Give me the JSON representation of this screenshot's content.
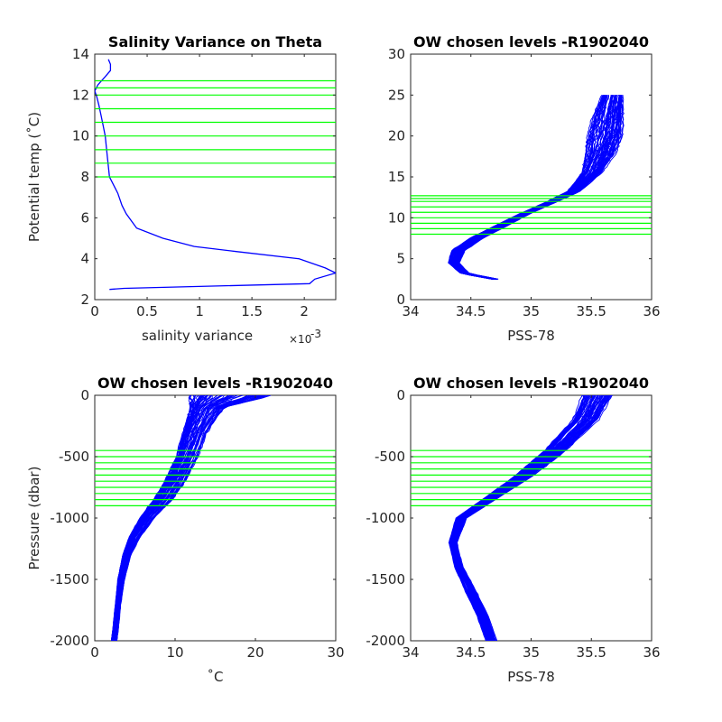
{
  "colors": {
    "profile": "#0000ff",
    "levels": "#00ff00",
    "axis": "#262626"
  },
  "chart_data": [
    {
      "type": "line",
      "title": "Salinity Variance on Theta",
      "xlabel": "salinity variance",
      "x_exponent_base": "×10",
      "x_exponent_power": "-3",
      "ylabel": "Potential temp (˚C)",
      "xlim": [
        0,
        2.3
      ],
      "ylim": [
        2,
        14
      ],
      "xticks": [
        0,
        0.5,
        1,
        1.5,
        2
      ],
      "xtick_labels": [
        "0",
        "0.5",
        "1",
        "1.5",
        "2"
      ],
      "yticks": [
        2,
        4,
        6,
        8,
        10,
        12,
        14
      ],
      "ytick_labels": [
        "2",
        "4",
        "6",
        "8",
        "10",
        "12",
        "14"
      ],
      "series": [
        {
          "x": [
            0.14,
            0.28,
            2.05,
            2.1,
            2.3,
            2.2,
            1.95,
            1.35,
            0.95,
            0.65,
            0.4,
            0.3,
            0.26,
            0.22,
            0.14,
            0.12,
            0.1,
            0.08,
            0.06,
            0.04,
            0.02,
            0.0,
            0.03,
            0.1,
            0.15,
            0.15,
            0.13
          ],
          "y": [
            2.5,
            2.55,
            2.78,
            3.0,
            3.3,
            3.55,
            4.0,
            4.35,
            4.6,
            5.0,
            5.5,
            6.2,
            6.6,
            7.2,
            8.0,
            9.0,
            10.0,
            10.5,
            11.0,
            11.5,
            11.9,
            12.2,
            12.5,
            12.9,
            13.2,
            13.5,
            13.75
          ]
        }
      ],
      "level_lines_y": [
        8.0,
        8.67,
        9.33,
        10.0,
        10.67,
        11.33,
        12.0,
        12.35,
        12.7
      ]
    },
    {
      "type": "line",
      "title": "OW chosen levels -R1902040",
      "xlabel": "PSS-78",
      "ylabel": "",
      "xlim": [
        34,
        36
      ],
      "ylim": [
        0,
        30
      ],
      "xticks": [
        34,
        34.5,
        35,
        35.5,
        36
      ],
      "xtick_labels": [
        "34",
        "34.5",
        "35",
        "35.5",
        "36"
      ],
      "yticks": [
        0,
        5,
        10,
        15,
        20,
        25,
        30
      ],
      "ytick_labels": [
        "0",
        "5",
        "10",
        "15",
        "20",
        "25",
        "30"
      ],
      "profile_band": {
        "x": [
          34.7,
          34.45,
          34.36,
          34.4,
          34.55,
          34.75,
          34.95,
          35.15,
          35.35,
          35.5,
          35.58,
          35.62,
          35.65,
          35.68
        ],
        "y": [
          2.5,
          3.2,
          4.5,
          6.0,
          7.5,
          9.0,
          10.5,
          11.8,
          13.2,
          15.5,
          18.0,
          20.0,
          22.5,
          25.0
        ],
        "spread": [
          0.03,
          0.04,
          0.05,
          0.06,
          0.06,
          0.06,
          0.05,
          0.05,
          0.06,
          0.09,
          0.14,
          0.16,
          0.14,
          0.1
        ]
      },
      "level_lines_y": [
        8.0,
        8.67,
        9.33,
        10.0,
        10.67,
        11.33,
        12.0,
        12.35,
        12.7
      ]
    },
    {
      "type": "line",
      "title": "OW chosen levels -R1902040",
      "xlabel": "˚C",
      "ylabel": "Pressure (dbar)",
      "xlim": [
        0,
        30
      ],
      "ylim": [
        -2000,
        0
      ],
      "xticks": [
        0,
        10,
        20,
        30
      ],
      "xtick_labels": [
        "0",
        "10",
        "20",
        "30"
      ],
      "yticks": [
        -2000,
        -1500,
        -1000,
        -500,
        0
      ],
      "ytick_labels": [
        "-2000",
        "-1500",
        "-1000",
        "-500",
        "0"
      ],
      "profile_band": {
        "x": [
          17.0,
          14.0,
          12.5,
          11.5,
          10.0,
          8.5,
          6.5,
          5.0,
          4.0,
          3.3,
          2.9,
          2.6,
          2.4
        ],
        "y": [
          0,
          -100,
          -300,
          -500,
          -700,
          -850,
          -1000,
          -1150,
          -1300,
          -1500,
          -1700,
          -1900,
          -2000
        ],
        "spread": [
          6.0,
          2.5,
          1.8,
          1.6,
          1.5,
          1.3,
          1.0,
          0.8,
          0.6,
          0.5,
          0.4,
          0.4,
          0.4
        ]
      },
      "level_lines_y": [
        -450,
        -500,
        -550,
        -600,
        -650,
        -700,
        -750,
        -800,
        -850,
        -900
      ]
    },
    {
      "type": "line",
      "title": "OW chosen levels -R1902040",
      "xlabel": "PSS-78",
      "ylabel": "",
      "xlim": [
        34,
        36
      ],
      "ylim": [
        -2000,
        0
      ],
      "xticks": [
        34,
        34.5,
        35,
        35.5,
        36
      ],
      "xtick_labels": [
        "34",
        "34.5",
        "35",
        "35.5",
        "36"
      ],
      "yticks": [
        -2000,
        -1500,
        -1000,
        -500,
        0
      ],
      "ytick_labels": [
        "-2000",
        "-1500",
        "-1000",
        "-500",
        "0"
      ],
      "profile_band": {
        "x": [
          35.55,
          35.45,
          35.2,
          34.95,
          34.65,
          34.42,
          34.35,
          34.4,
          34.5,
          34.6,
          34.67
        ],
        "y": [
          0,
          -200,
          -450,
          -650,
          -850,
          -1000,
          -1200,
          -1400,
          -1600,
          -1800,
          -2000
        ],
        "spread": [
          0.15,
          0.12,
          0.1,
          0.08,
          0.06,
          0.05,
          0.04,
          0.04,
          0.05,
          0.05,
          0.05
        ]
      },
      "level_lines_y": [
        -450,
        -500,
        -550,
        -600,
        -650,
        -700,
        -750,
        -800,
        -850,
        -900
      ]
    }
  ]
}
